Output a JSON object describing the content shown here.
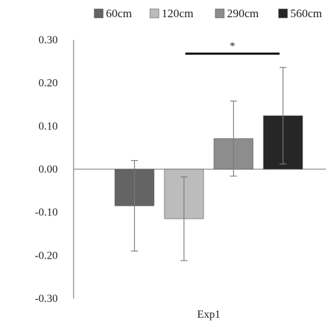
{
  "chart_data": {
    "type": "bar",
    "categories": [
      "Exp1"
    ],
    "series": [
      {
        "name": "60cm",
        "values": [
          -0.085
        ],
        "error": [
          0.105
        ],
        "color": "#646464"
      },
      {
        "name": "120cm",
        "values": [
          -0.115
        ],
        "error": [
          0.097
        ],
        "color": "#bcbcbc"
      },
      {
        "name": "290cm",
        "values": [
          0.071
        ],
        "error": [
          0.087
        ],
        "color": "#8d8d8d"
      },
      {
        "name": "560cm",
        "values": [
          0.124
        ],
        "error": [
          0.112
        ],
        "color": "#262626"
      }
    ],
    "ylim": [
      -0.3,
      0.3
    ],
    "yticks": [
      "0.30",
      "0.20",
      "0.10",
      "0.00",
      "-0.10",
      "-0.20",
      "-0.30"
    ],
    "ytick_values": [
      0.3,
      0.2,
      0.1,
      0.0,
      -0.1,
      -0.2,
      -0.3
    ],
    "significance": {
      "label": "*",
      "from_series": "120cm",
      "to_series": "560cm",
      "y": 0.268
    },
    "legend_position": "top",
    "grid": false,
    "title": "",
    "xlabel": "",
    "ylabel": ""
  }
}
